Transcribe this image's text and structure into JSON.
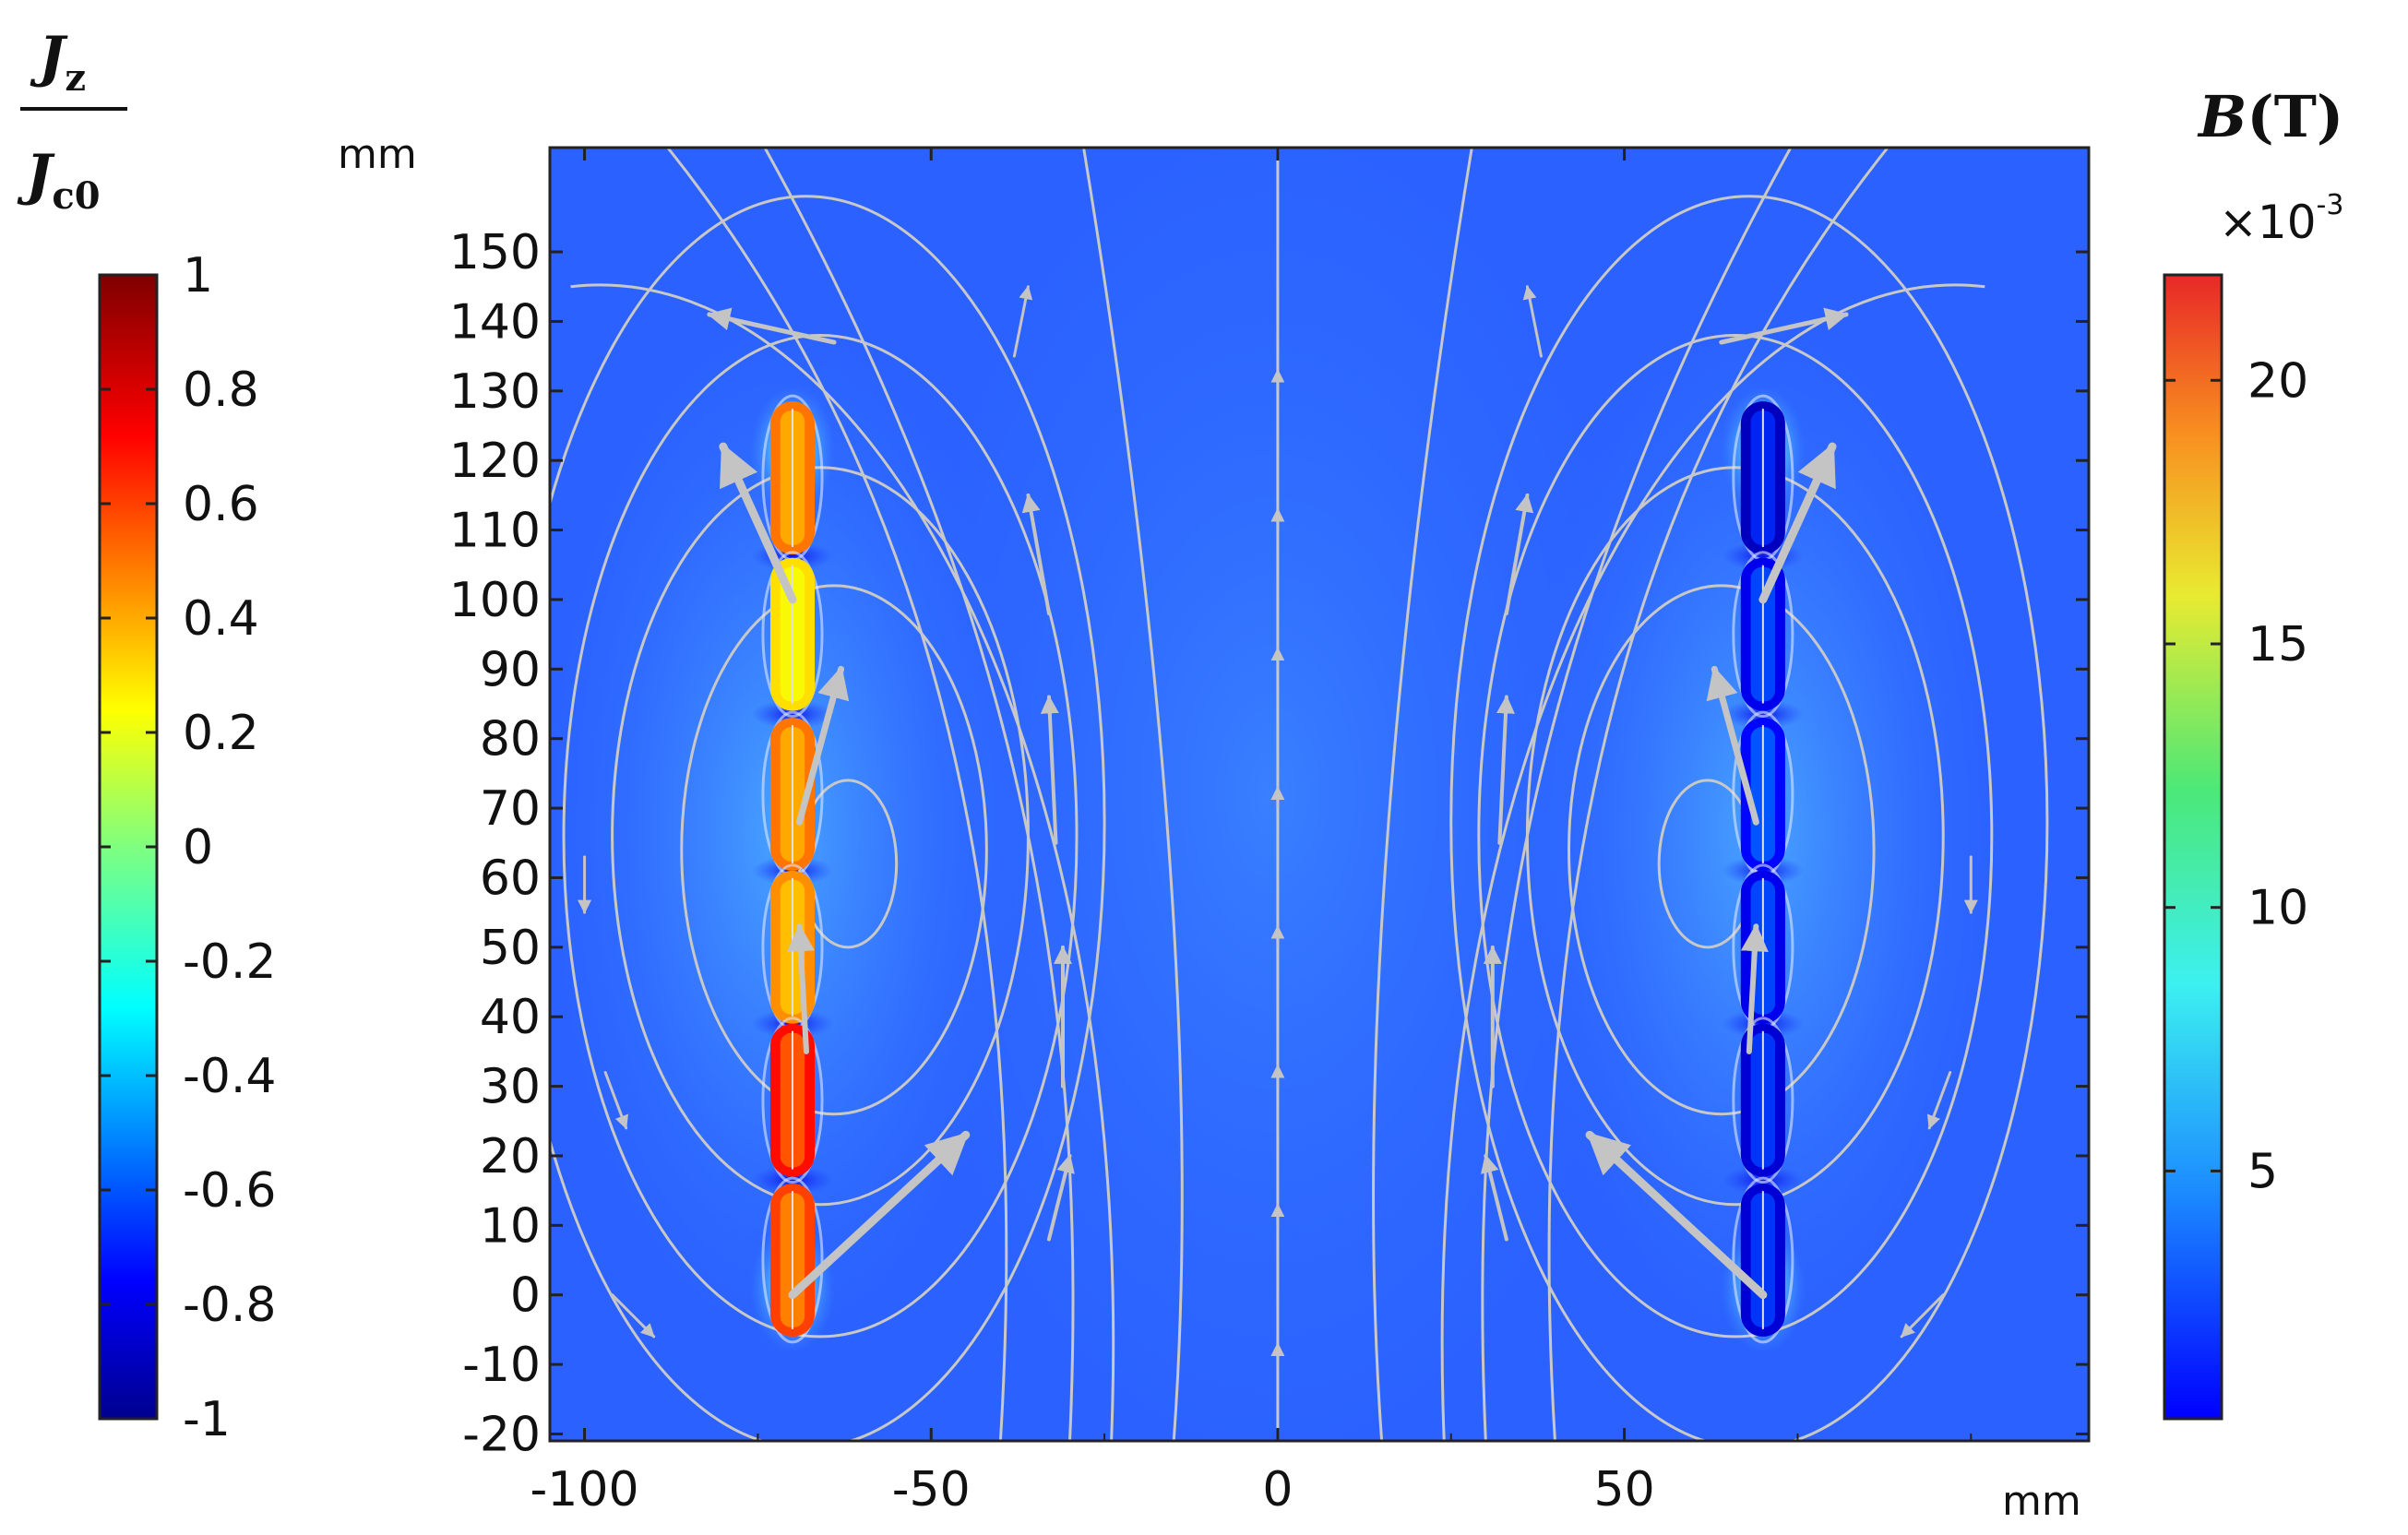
{
  "chart_data": {
    "type": "heatmap",
    "x_unit": "mm",
    "y_unit": "mm",
    "xlim": [
      -105,
      117
    ],
    "ylim": [
      -21,
      165
    ],
    "x_ticks": [
      -100,
      -50,
      0,
      50
    ],
    "x_tick_labels": [
      "-100",
      "-50",
      "0",
      "50"
    ],
    "y_ticks": [
      150,
      140,
      130,
      120,
      110,
      100,
      90,
      80,
      70,
      60,
      50,
      40,
      30,
      20,
      10,
      0,
      -10,
      -20
    ],
    "y_tick_labels": [
      "150",
      "140",
      "130",
      "120",
      "110",
      "100",
      "90",
      "80",
      "70",
      "60",
      "50",
      "40",
      "30",
      "20",
      "10",
      "0",
      "-10",
      "-20"
    ],
    "left_colorbar": {
      "title_numerator": "J",
      "title_numerator_sub": "z",
      "title_denominator": "J",
      "title_denominator_sub": "c0",
      "range": [
        -1,
        1
      ],
      "ticks": [
        1,
        0.8,
        0.6,
        0.4,
        0.2,
        0,
        -0.2,
        -0.4,
        -0.6,
        -0.8,
        -1
      ],
      "tick_labels": [
        "1",
        "0.8",
        "0.6",
        "0.4",
        "0.2",
        "0",
        "-0.2",
        "-0.4",
        "-0.6",
        "-0.8",
        "-1"
      ]
    },
    "right_colorbar": {
      "title": "B",
      "title_unit": "(T)",
      "multiplier_prefix": "×10",
      "multiplier_exponent": "-3",
      "range": [
        0.3,
        22
      ],
      "ticks": [
        20,
        15,
        10,
        5
      ],
      "tick_labels": [
        "20",
        "15",
        "10",
        "5"
      ]
    },
    "coils": [
      {
        "x": -70,
        "y_centers": [
          117.5,
          95,
          72,
          50,
          28,
          5
        ],
        "jz": [
          0.5,
          0.3,
          0.5,
          0.45,
          0.7,
          0.6
        ]
      },
      {
        "x": 70,
        "y_centers": [
          117.5,
          95,
          72,
          50,
          28,
          5
        ],
        "jz": [
          -0.9,
          -0.8,
          -0.75,
          -0.8,
          -0.85,
          -0.85
        ]
      }
    ]
  }
}
